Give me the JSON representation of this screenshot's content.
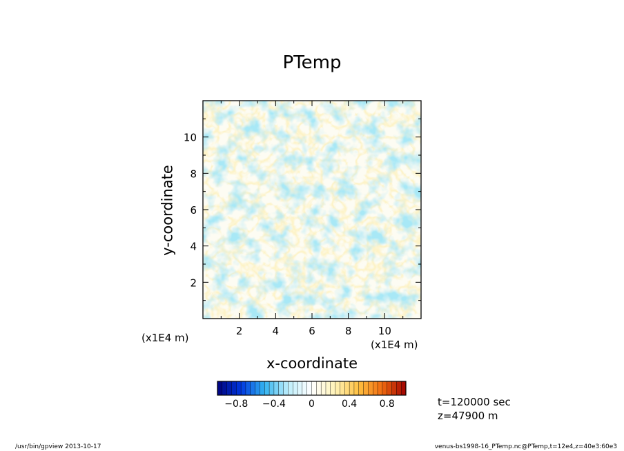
{
  "chart_data": {
    "type": "heatmap",
    "title": "PTemp",
    "xlabel": "x-coordinate",
    "ylabel": "y-coordinate",
    "x_unit": "(x1E4 m)",
    "y_unit": "(x1E4 m)",
    "xlim": [
      0,
      12
    ],
    "ylim": [
      0,
      12
    ],
    "x_ticks": [
      2,
      4,
      6,
      8,
      10
    ],
    "y_ticks": [
      2,
      4,
      6,
      8,
      10
    ],
    "colorbar": {
      "range": [
        -1.0,
        1.0
      ],
      "levels": 40,
      "tick_values": [
        -0.8,
        -0.4,
        0,
        0.4,
        0.8
      ],
      "tick_labels": [
        "−0.8",
        "−0.4",
        "0",
        "0.4",
        "0.8"
      ],
      "colors": [
        "#00007a",
        "#0038e0",
        "#33b4f0",
        "#bfeefb",
        "#ffffff",
        "#fff3b8",
        "#ffc040",
        "#f06a10",
        "#a00000"
      ]
    },
    "field_value_range": [
      -0.35,
      0.15
    ],
    "annotations": {
      "time": "t=120000 sec",
      "height": "z=47900 m"
    }
  },
  "footer": {
    "left": "/usr/bin/gpview  2013-10-17",
    "right": "venus-bs1998-16_PTemp.nc@PTemp,t=12e4,z=40e3:60e3"
  }
}
